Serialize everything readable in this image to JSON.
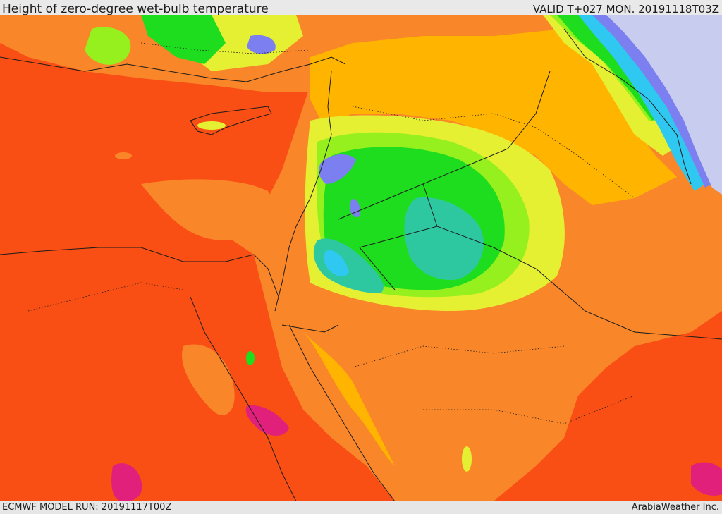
{
  "header": {
    "title": "Height of zero-degree wet-bulb temperature",
    "valid": "VALID T+027 MON. 20191118T03Z"
  },
  "footer": {
    "model_run": "ECMWF MODEL RUN: 20191117T00Z",
    "credit": "ArabiaWeather Inc."
  },
  "palette": {
    "lowest": "#c8cdf0",
    "very_low": "#7b7ff0",
    "low": "#2ec8f0",
    "teal": "#2ec8a0",
    "green": "#1edc1e",
    "light_green": "#96f01e",
    "yellow": "#e6f032",
    "gold": "#ffb400",
    "orange": "#f98628",
    "red_orange": "#f94e14",
    "magenta": "#e0207a"
  }
}
